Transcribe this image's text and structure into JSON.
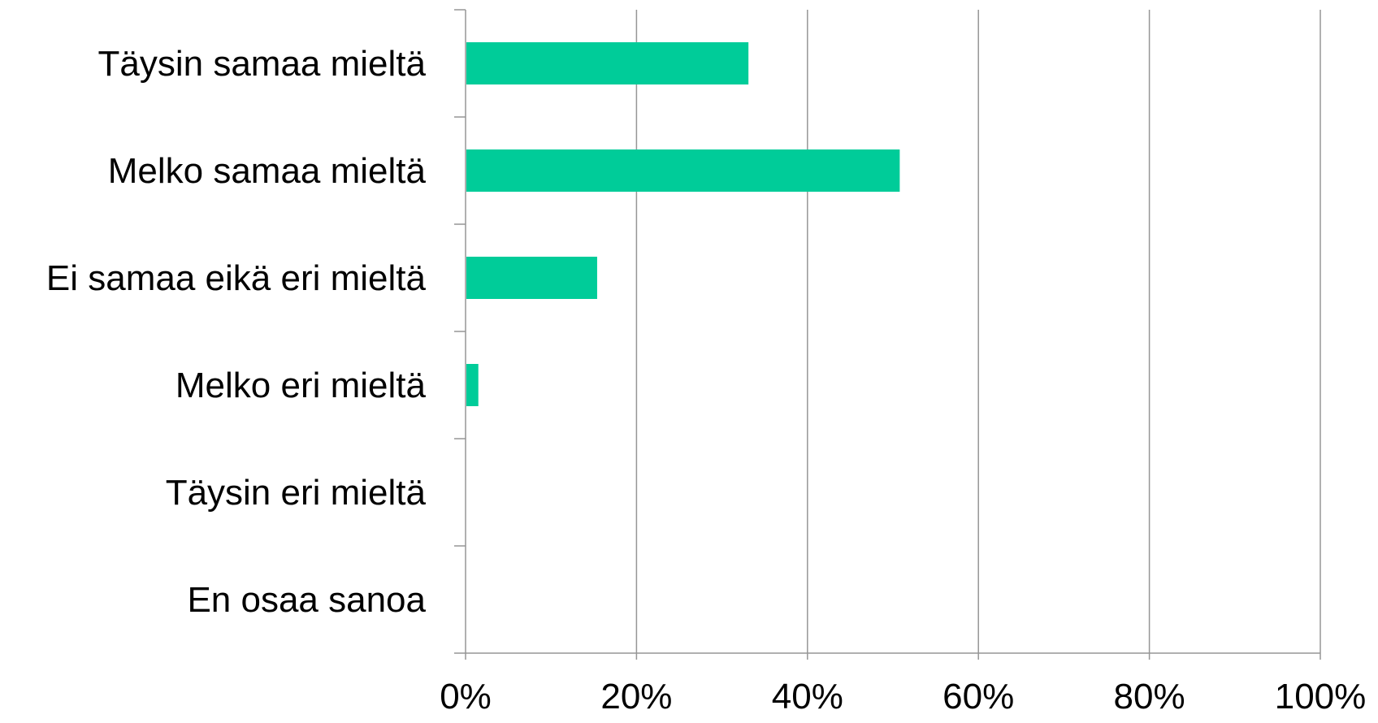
{
  "chart_data": {
    "type": "bar",
    "orientation": "horizontal",
    "categories": [
      "Täysin samaa mieltä",
      "Melko samaa mieltä",
      "Ei samaa eikä eri mieltä",
      "Melko eri mieltä",
      "Täysin eri mieltä",
      "En osaa sanoa"
    ],
    "values": [
      33,
      50.7,
      15.3,
      1.4,
      0,
      0
    ],
    "x_ticks": [
      "0%",
      "20%",
      "40%",
      "60%",
      "80%",
      "100%"
    ],
    "xlim": [
      0,
      100
    ],
    "grid": "vertical",
    "legend": "none",
    "bar_color": "#00CC99",
    "axis_color": "#969696"
  }
}
